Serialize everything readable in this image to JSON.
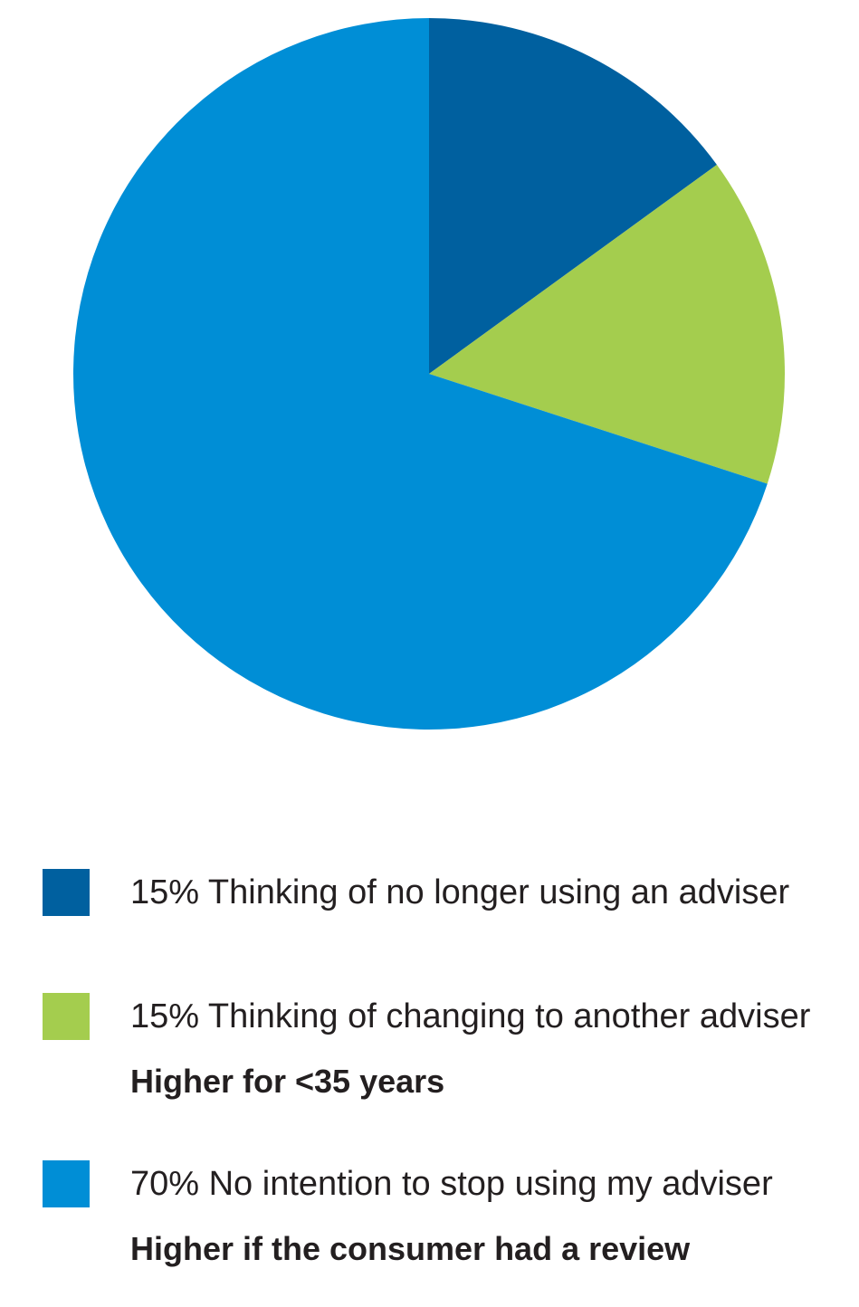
{
  "chart_data": {
    "type": "pie",
    "slices": [
      {
        "label": "15% Thinking of no longer using an adviser",
        "value": 15,
        "color": "#00609f",
        "note": ""
      },
      {
        "label": "15% Thinking of changing to another adviser",
        "value": 15,
        "color": "#a4cd4e",
        "note": "Higher for <35 years"
      },
      {
        "label": "70% No intention to stop using my adviser",
        "value": 70,
        "color": "#008ed6",
        "note": "Higher if the consumer had a review"
      }
    ],
    "start_angle_deg": 0,
    "direction": "clockwise",
    "legend_position": "bottom"
  }
}
